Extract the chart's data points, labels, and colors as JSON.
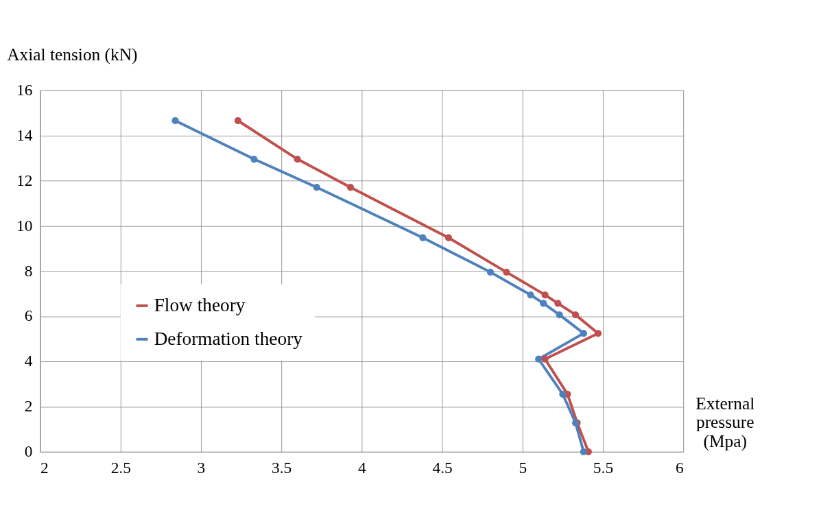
{
  "chart_data": {
    "type": "line",
    "xlabel": "External pressure (Mpa)",
    "ylabel": "Axial tension (kN)",
    "series": [
      {
        "name": "Flow theory",
        "color": "#c0504d",
        "x": [
          3.23,
          3.6,
          3.93,
          4.54,
          4.9,
          5.14,
          5.22,
          5.33,
          5.47,
          5.14,
          5.28,
          5.34,
          5.41
        ],
        "values": [
          14.65,
          12.95,
          11.7,
          9.47,
          7.95,
          6.94,
          6.57,
          6.06,
          5.24,
          4.1,
          2.55,
          1.28,
          0.0
        ]
      },
      {
        "name": "Deformation theory",
        "color": "#4f81bd",
        "x": [
          2.84,
          3.33,
          3.72,
          4.38,
          4.8,
          5.05,
          5.13,
          5.23,
          5.38,
          5.1,
          5.25,
          5.33,
          5.38
        ],
        "values": [
          14.65,
          12.95,
          11.7,
          9.47,
          7.95,
          6.94,
          6.57,
          6.06,
          5.24,
          4.1,
          2.55,
          1.28,
          0.0
        ]
      }
    ],
    "xlim": [
      2,
      6
    ],
    "xticks": [
      2,
      2.5,
      3,
      3.5,
      4,
      4.5,
      5,
      5.5,
      6
    ],
    "ylim": [
      0,
      16
    ],
    "yticks": [
      0,
      2,
      4,
      6,
      8,
      10,
      12,
      14,
      16
    ],
    "grid": true,
    "legend": "left",
    "marker": "circle",
    "line_style": "solid"
  }
}
